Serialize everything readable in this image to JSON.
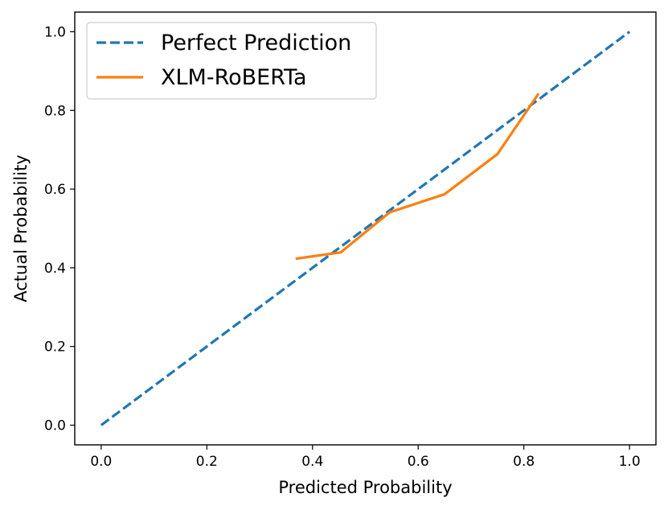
{
  "chart_data": {
    "type": "line",
    "xlabel": "Predicted Probability",
    "ylabel": "Actual Probability",
    "xlim": [
      -0.05,
      1.05
    ],
    "ylim": [
      -0.05,
      1.05
    ],
    "xticks": [
      0.0,
      0.2,
      0.4,
      0.6,
      0.8,
      1.0
    ],
    "yticks": [
      0.0,
      0.2,
      0.4,
      0.6,
      0.8,
      1.0
    ],
    "xtick_labels": [
      "0.0",
      "0.2",
      "0.4",
      "0.6",
      "0.8",
      "1.0"
    ],
    "ytick_labels": [
      "0.0",
      "0.2",
      "0.4",
      "0.6",
      "0.8",
      "1.0"
    ],
    "grid": false,
    "legend_position": "upper-left",
    "series": [
      {
        "name": "Perfect Prediction",
        "color": "#1f77b4",
        "style": "dashed",
        "x": [
          0.0,
          1.0
        ],
        "y": [
          0.0,
          1.0
        ]
      },
      {
        "name": "XLM-RoBERTa",
        "color": "#ff7f0e",
        "style": "solid",
        "x": [
          0.368,
          0.453,
          0.546,
          0.65,
          0.75,
          0.828
        ],
        "y": [
          0.423,
          0.439,
          0.541,
          0.587,
          0.689,
          0.843
        ]
      }
    ]
  }
}
